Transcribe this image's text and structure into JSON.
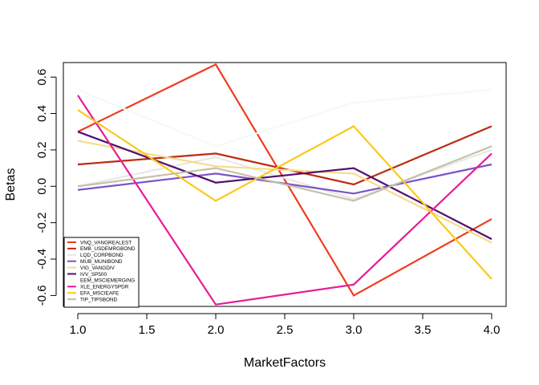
{
  "chart_data": {
    "type": "line",
    "xlabel": "MarketFactors",
    "ylabel": "Betas",
    "x": [
      1,
      2,
      3,
      4
    ],
    "xlim": [
      1,
      4
    ],
    "ylim": [
      -0.66,
      0.68
    ],
    "x_ticks": [
      1.0,
      1.5,
      2.0,
      2.5,
      3.0,
      3.5,
      4.0
    ],
    "x_tick_labels": [
      "1.0",
      "1.5",
      "2.0",
      "2.5",
      "3.0",
      "3.5",
      "4.0"
    ],
    "y_ticks": [
      -0.6,
      -0.4,
      -0.2,
      0.0,
      0.2,
      0.4,
      0.6
    ],
    "y_tick_labels": [
      "-0.6",
      "-0.4",
      "-0.2",
      "0.0",
      "0.2",
      "0.4",
      "0.6"
    ],
    "grid": false,
    "legend_position": "bottom-left",
    "series": [
      {
        "name": "VNQ_VANGREALEST",
        "color": "#f03b20",
        "values": [
          0.3,
          0.67,
          -0.6,
          -0.18
        ]
      },
      {
        "name": "EMB_USDEMRGBOND",
        "color": "#bd2a10",
        "values": [
          0.12,
          0.18,
          0.01,
          0.33
        ]
      },
      {
        "name": "LQD_CORPBOND",
        "color": "#e8e8e8",
        "values": [
          0.0,
          0.16,
          -0.07,
          0.2
        ]
      },
      {
        "name": "MUB_MUNIBOND",
        "color": "#7b52c8",
        "values": [
          -0.02,
          0.07,
          -0.04,
          0.12
        ]
      },
      {
        "name": "VIG_VANGDIV",
        "color": "#f5dc8c",
        "values": [
          0.25,
          0.11,
          0.07,
          -0.31
        ]
      },
      {
        "name": "IVV_SP500",
        "color": "#520f6e",
        "values": [
          0.3,
          0.02,
          0.1,
          -0.29
        ]
      },
      {
        "name": "EEM_MSCIEMERGING",
        "color": "#f2fbfa",
        "values": [
          0.53,
          0.22,
          0.46,
          0.53
        ]
      },
      {
        "name": "XLE_ENERGYSPDR",
        "color": "#e81c96",
        "values": [
          0.5,
          -0.65,
          -0.54,
          0.18
        ]
      },
      {
        "name": "EFA_MSCIEAFE",
        "color": "#fbc91a",
        "values": [
          0.42,
          -0.08,
          0.33,
          -0.51
        ]
      },
      {
        "name": "TIP_TIPSBOND",
        "color": "#c4c0a8",
        "values": [
          0.0,
          0.1,
          -0.08,
          0.22
        ]
      }
    ]
  }
}
